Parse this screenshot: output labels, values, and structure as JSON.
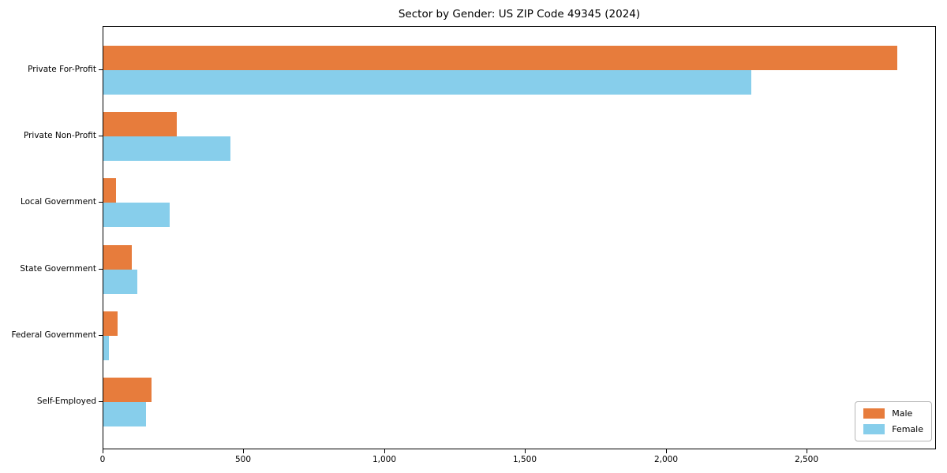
{
  "title": "Sector by Gender: US ZIP Code 49345 (2024)",
  "chart_data": {
    "type": "bar",
    "orientation": "horizontal",
    "title": "Sector by Gender: US ZIP Code 49345 (2024)",
    "categories": [
      "Private For-Profit",
      "Private Non-Profit",
      "Local Government",
      "State Government",
      "Federal Government",
      "Self-Employed"
    ],
    "series": [
      {
        "name": "Male",
        "color": "#E77C3C",
        "values": [
          2820,
          260,
          45,
          100,
          50,
          170
        ]
      },
      {
        "name": "Female",
        "color": "#87CEEB",
        "values": [
          2300,
          450,
          235,
          120,
          20,
          150
        ]
      }
    ],
    "xlabel": "",
    "ylabel": "",
    "xlim": [
      0,
      2960
    ],
    "xticks": {
      "values": [
        0,
        500,
        1000,
        1500,
        2000,
        2500
      ],
      "labels": [
        "0",
        "500",
        "1,000",
        "1,500",
        "2,000",
        "2,500"
      ]
    },
    "grid": false,
    "legend": {
      "position": "lower right",
      "entries": [
        "Male",
        "Female"
      ]
    }
  },
  "colors": {
    "background": "#ffffff",
    "axis": "#000000",
    "male": "#E77C3C",
    "female": "#87CEEB",
    "legend_border": "#b7b7b7"
  }
}
